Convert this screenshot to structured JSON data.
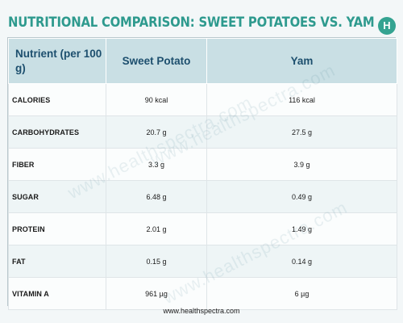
{
  "title": "NUTRITIONAL COMPARISON:  SWEET POTATOES  VS. YAM",
  "brand_badge": "H",
  "watermark": "www.healthspectra.com",
  "table": {
    "headers": [
      "Nutrient (per 100 g)",
      "Sweet Potato",
      "Yam"
    ],
    "rows": [
      {
        "nutrient": "CALORIES",
        "sweet_potato": "90 kcal",
        "yam": "116 kcal"
      },
      {
        "nutrient": "CARBOHYDRATES",
        "sweet_potato": "20.7 g",
        "yam": "27.5 g"
      },
      {
        "nutrient": "FIBER",
        "sweet_potato": "3.3 g",
        "yam": "3.9 g"
      },
      {
        "nutrient": "SUGAR",
        "sweet_potato": "6.48 g",
        "yam": "0.49 g"
      },
      {
        "nutrient": "PROTEIN",
        "sweet_potato": "2.01 g",
        "yam": "1.49 g"
      },
      {
        "nutrient": "FAT",
        "sweet_potato": "0.15 g",
        "yam": "0.14 g"
      },
      {
        "nutrient": "VITAMIN A",
        "sweet_potato": "961 µg",
        "yam": "6 µg"
      }
    ]
  },
  "footer": "www.healthspectra.com",
  "colors": {
    "title": "#2e9a8e",
    "header_bg": "#c9dfe4",
    "header_text": "#1d4f6e",
    "badge": "#34a391"
  }
}
